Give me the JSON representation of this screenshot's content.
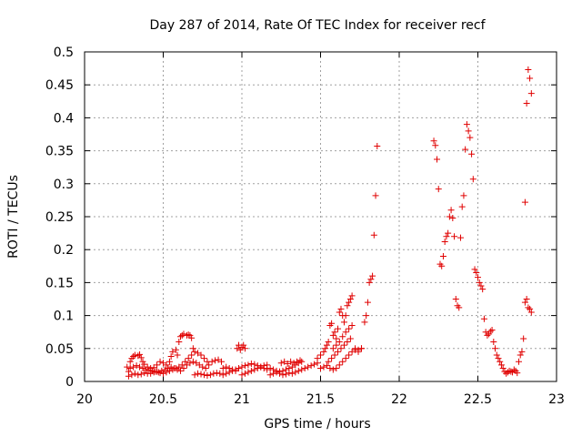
{
  "chart_data": {
    "type": "scatter",
    "title": "Day 287 of 2014, Rate Of TEC Index for receiver recf",
    "xlabel": "GPS time / hours",
    "ylabel": "ROTI / TECUs",
    "xlim": [
      20,
      23
    ],
    "ylim": [
      0,
      0.5
    ],
    "x_ticks": [
      20,
      20.5,
      21,
      21.5,
      22,
      22.5,
      23
    ],
    "x_tick_labels": [
      "20",
      "20.5",
      "21",
      "21.5",
      "22",
      "22.5",
      "23"
    ],
    "y_ticks": [
      0,
      0.05,
      0.1,
      0.15,
      0.2,
      0.25,
      0.3,
      0.35,
      0.4,
      0.45,
      0.5
    ],
    "y_tick_labels": [
      "0",
      "0.05",
      "0.1",
      "0.15",
      "0.2",
      "0.25",
      "0.3",
      "0.35",
      "0.4",
      "0.45",
      "0.5"
    ],
    "grid": true,
    "marker": "+",
    "color": "#e00000",
    "series": [
      {
        "name": "receiver recf",
        "points": [
          [
            20.27,
            0.022
          ],
          [
            20.28,
            0.015
          ],
          [
            20.29,
            0.03
          ],
          [
            20.3,
            0.035
          ],
          [
            20.31,
            0.038
          ],
          [
            20.32,
            0.04
          ],
          [
            20.34,
            0.039
          ],
          [
            20.35,
            0.041
          ],
          [
            20.36,
            0.036
          ],
          [
            20.37,
            0.03
          ],
          [
            20.38,
            0.026
          ],
          [
            20.4,
            0.022
          ],
          [
            20.42,
            0.02
          ],
          [
            20.44,
            0.021
          ],
          [
            20.46,
            0.025
          ],
          [
            20.48,
            0.03
          ],
          [
            20.5,
            0.028
          ],
          [
            20.52,
            0.025
          ],
          [
            20.54,
            0.03
          ],
          [
            20.55,
            0.038
          ],
          [
            20.56,
            0.045
          ],
          [
            20.58,
            0.048
          ],
          [
            20.59,
            0.04
          ],
          [
            20.6,
            0.06
          ],
          [
            20.61,
            0.068
          ],
          [
            20.62,
            0.07
          ],
          [
            20.63,
            0.072
          ],
          [
            20.65,
            0.07
          ],
          [
            20.66,
            0.071
          ],
          [
            20.67,
            0.07
          ],
          [
            20.68,
            0.066
          ],
          [
            20.69,
            0.05
          ],
          [
            20.28,
            0.008
          ],
          [
            20.3,
            0.01
          ],
          [
            20.32,
            0.012
          ],
          [
            20.34,
            0.01
          ],
          [
            20.36,
            0.011
          ],
          [
            20.38,
            0.013
          ],
          [
            20.4,
            0.012
          ],
          [
            20.42,
            0.012
          ],
          [
            20.44,
            0.014
          ],
          [
            20.46,
            0.015
          ],
          [
            20.48,
            0.013
          ],
          [
            20.5,
            0.012
          ],
          [
            20.52,
            0.014
          ],
          [
            20.54,
            0.016
          ],
          [
            20.56,
            0.018
          ],
          [
            20.58,
            0.02
          ],
          [
            20.6,
            0.022
          ],
          [
            20.62,
            0.025
          ],
          [
            20.64,
            0.03
          ],
          [
            20.66,
            0.035
          ],
          [
            20.68,
            0.04
          ],
          [
            20.7,
            0.045
          ],
          [
            20.72,
            0.043
          ],
          [
            20.74,
            0.04
          ],
          [
            20.76,
            0.035
          ],
          [
            20.78,
            0.03
          ],
          [
            20.29,
            0.02
          ],
          [
            20.31,
            0.022
          ],
          [
            20.33,
            0.024
          ],
          [
            20.35,
            0.022
          ],
          [
            20.37,
            0.02
          ],
          [
            20.39,
            0.018
          ],
          [
            20.41,
            0.017
          ],
          [
            20.43,
            0.016
          ],
          [
            20.45,
            0.015
          ],
          [
            20.47,
            0.014
          ],
          [
            20.49,
            0.016
          ],
          [
            20.51,
            0.018
          ],
          [
            20.53,
            0.02
          ],
          [
            20.55,
            0.022
          ],
          [
            20.57,
            0.02
          ],
          [
            20.59,
            0.018
          ],
          [
            20.61,
            0.016
          ],
          [
            20.63,
            0.02
          ],
          [
            20.65,
            0.025
          ],
          [
            20.67,
            0.028
          ],
          [
            20.69,
            0.03
          ],
          [
            20.71,
            0.028
          ],
          [
            20.73,
            0.025
          ],
          [
            20.75,
            0.022
          ],
          [
            20.77,
            0.02
          ],
          [
            20.79,
            0.025
          ],
          [
            20.81,
            0.03
          ],
          [
            20.83,
            0.032
          ],
          [
            20.85,
            0.033
          ],
          [
            20.87,
            0.03
          ],
          [
            20.7,
            0.01
          ],
          [
            20.72,
            0.012
          ],
          [
            20.74,
            0.011
          ],
          [
            20.76,
            0.01
          ],
          [
            20.78,
            0.009
          ],
          [
            20.8,
            0.01
          ],
          [
            20.82,
            0.012
          ],
          [
            20.84,
            0.013
          ],
          [
            20.86,
            0.012
          ],
          [
            20.88,
            0.01
          ],
          [
            20.9,
            0.012
          ],
          [
            20.92,
            0.014
          ],
          [
            20.94,
            0.016
          ],
          [
            20.96,
            0.018
          ],
          [
            20.98,
            0.02
          ],
          [
            21.0,
            0.022
          ],
          [
            21.02,
            0.024
          ],
          [
            21.04,
            0.025
          ],
          [
            21.06,
            0.027
          ],
          [
            21.08,
            0.026
          ],
          [
            21.1,
            0.024
          ],
          [
            21.12,
            0.022
          ],
          [
            21.14,
            0.02
          ],
          [
            21.16,
            0.018
          ],
          [
            20.88,
            0.02
          ],
          [
            20.9,
            0.022
          ],
          [
            20.92,
            0.02
          ],
          [
            20.94,
            0.018
          ],
          [
            20.96,
            0.016
          ],
          [
            20.97,
            0.05
          ],
          [
            20.98,
            0.055
          ],
          [
            20.99,
            0.048
          ],
          [
            21.0,
            0.052
          ],
          [
            21.01,
            0.055
          ],
          [
            21.02,
            0.05
          ],
          [
            21.0,
            0.01
          ],
          [
            21.02,
            0.012
          ],
          [
            21.04,
            0.014
          ],
          [
            21.06,
            0.016
          ],
          [
            21.08,
            0.018
          ],
          [
            21.1,
            0.02
          ],
          [
            21.12,
            0.022
          ],
          [
            21.14,
            0.024
          ],
          [
            21.16,
            0.025
          ],
          [
            21.18,
            0.02
          ],
          [
            21.2,
            0.018
          ],
          [
            21.22,
            0.016
          ],
          [
            21.24,
            0.015
          ],
          [
            21.26,
            0.016
          ],
          [
            21.28,
            0.018
          ],
          [
            21.3,
            0.02
          ],
          [
            21.32,
            0.022
          ],
          [
            21.34,
            0.025
          ],
          [
            21.36,
            0.028
          ],
          [
            21.38,
            0.03
          ],
          [
            21.18,
            0.01
          ],
          [
            21.2,
            0.012
          ],
          [
            21.22,
            0.014
          ],
          [
            21.24,
            0.012
          ],
          [
            21.26,
            0.01
          ],
          [
            21.28,
            0.011
          ],
          [
            21.3,
            0.013
          ],
          [
            21.32,
            0.012
          ],
          [
            21.34,
            0.014
          ],
          [
            21.36,
            0.016
          ],
          [
            21.38,
            0.018
          ],
          [
            21.4,
            0.02
          ],
          [
            21.42,
            0.022
          ],
          [
            21.44,
            0.024
          ],
          [
            21.46,
            0.026
          ],
          [
            21.48,
            0.028
          ],
          [
            21.25,
            0.028
          ],
          [
            21.27,
            0.03
          ],
          [
            21.29,
            0.027
          ],
          [
            21.31,
            0.03
          ],
          [
            21.33,
            0.028
          ],
          [
            21.35,
            0.03
          ],
          [
            21.37,
            0.032
          ],
          [
            21.48,
            0.035
          ],
          [
            21.5,
            0.04
          ],
          [
            21.52,
            0.045
          ],
          [
            21.53,
            0.05
          ],
          [
            21.54,
            0.055
          ],
          [
            21.55,
            0.06
          ],
          [
            21.56,
            0.085
          ],
          [
            21.57,
            0.088
          ],
          [
            21.58,
            0.07
          ],
          [
            21.59,
            0.075
          ],
          [
            21.6,
            0.065
          ],
          [
            21.61,
            0.08
          ],
          [
            21.62,
            0.105
          ],
          [
            21.63,
            0.11
          ],
          [
            21.64,
            0.1
          ],
          [
            21.65,
            0.09
          ],
          [
            21.66,
            0.1
          ],
          [
            21.67,
            0.115
          ],
          [
            21.68,
            0.12
          ],
          [
            21.69,
            0.125
          ],
          [
            21.7,
            0.13
          ],
          [
            21.72,
            0.05
          ],
          [
            21.74,
            0.048
          ],
          [
            21.76,
            0.05
          ],
          [
            21.78,
            0.09
          ],
          [
            21.79,
            0.1
          ],
          [
            21.8,
            0.12
          ],
          [
            21.81,
            0.15
          ],
          [
            21.82,
            0.155
          ],
          [
            21.83,
            0.16
          ],
          [
            21.84,
            0.222
          ],
          [
            21.85,
            0.282
          ],
          [
            21.86,
            0.357
          ],
          [
            21.5,
            0.02
          ],
          [
            21.52,
            0.022
          ],
          [
            21.54,
            0.024
          ],
          [
            21.56,
            0.02
          ],
          [
            21.58,
            0.018
          ],
          [
            21.6,
            0.02
          ],
          [
            21.62,
            0.025
          ],
          [
            21.64,
            0.03
          ],
          [
            21.66,
            0.035
          ],
          [
            21.68,
            0.04
          ],
          [
            21.7,
            0.045
          ],
          [
            21.72,
            0.048
          ],
          [
            21.74,
            0.045
          ],
          [
            21.76,
            0.05
          ],
          [
            21.55,
            0.03
          ],
          [
            21.57,
            0.035
          ],
          [
            21.59,
            0.04
          ],
          [
            21.61,
            0.045
          ],
          [
            21.63,
            0.05
          ],
          [
            21.65,
            0.055
          ],
          [
            21.67,
            0.06
          ],
          [
            21.69,
            0.065
          ],
          [
            21.58,
            0.05
          ],
          [
            21.6,
            0.055
          ],
          [
            21.62,
            0.06
          ],
          [
            21.64,
            0.068
          ],
          [
            21.66,
            0.075
          ],
          [
            21.68,
            0.08
          ],
          [
            21.7,
            0.085
          ],
          [
            22.22,
            0.365
          ],
          [
            22.23,
            0.358
          ],
          [
            22.24,
            0.337
          ],
          [
            22.25,
            0.292
          ],
          [
            22.26,
            0.178
          ],
          [
            22.27,
            0.175
          ],
          [
            22.28,
            0.19
          ],
          [
            22.29,
            0.212
          ],
          [
            22.3,
            0.22
          ],
          [
            22.31,
            0.225
          ],
          [
            22.32,
            0.25
          ],
          [
            22.33,
            0.26
          ],
          [
            22.34,
            0.248
          ],
          [
            22.35,
            0.22
          ],
          [
            22.36,
            0.125
          ],
          [
            22.37,
            0.115
          ],
          [
            22.38,
            0.112
          ],
          [
            22.39,
            0.218
          ],
          [
            22.4,
            0.265
          ],
          [
            22.41,
            0.282
          ],
          [
            22.42,
            0.352
          ],
          [
            22.43,
            0.39
          ],
          [
            22.44,
            0.38
          ],
          [
            22.45,
            0.37
          ],
          [
            22.46,
            0.345
          ],
          [
            22.47,
            0.307
          ],
          [
            22.48,
            0.17
          ],
          [
            22.49,
            0.165
          ],
          [
            22.5,
            0.158
          ],
          [
            22.51,
            0.15
          ],
          [
            22.52,
            0.145
          ],
          [
            22.53,
            0.14
          ],
          [
            22.54,
            0.095
          ],
          [
            22.55,
            0.075
          ],
          [
            22.56,
            0.07
          ],
          [
            22.57,
            0.072
          ],
          [
            22.58,
            0.076
          ],
          [
            22.59,
            0.078
          ],
          [
            22.6,
            0.06
          ],
          [
            22.61,
            0.05
          ],
          [
            22.62,
            0.04
          ],
          [
            22.63,
            0.035
          ],
          [
            22.64,
            0.03
          ],
          [
            22.65,
            0.025
          ],
          [
            22.66,
            0.02
          ],
          [
            22.67,
            0.015
          ],
          [
            22.68,
            0.012
          ],
          [
            22.69,
            0.014
          ],
          [
            22.7,
            0.016
          ],
          [
            22.71,
            0.015
          ],
          [
            22.72,
            0.014
          ],
          [
            22.73,
            0.018
          ],
          [
            22.74,
            0.016
          ],
          [
            22.75,
            0.013
          ],
          [
            22.76,
            0.03
          ],
          [
            22.77,
            0.04
          ],
          [
            22.78,
            0.045
          ],
          [
            22.79,
            0.065
          ],
          [
            22.8,
            0.12
          ],
          [
            22.81,
            0.125
          ],
          [
            22.82,
            0.112
          ],
          [
            22.83,
            0.11
          ],
          [
            22.84,
            0.105
          ],
          [
            22.8,
            0.272
          ],
          [
            22.81,
            0.422
          ],
          [
            22.82,
            0.473
          ],
          [
            22.83,
            0.46
          ],
          [
            22.84,
            0.437
          ]
        ]
      }
    ]
  }
}
